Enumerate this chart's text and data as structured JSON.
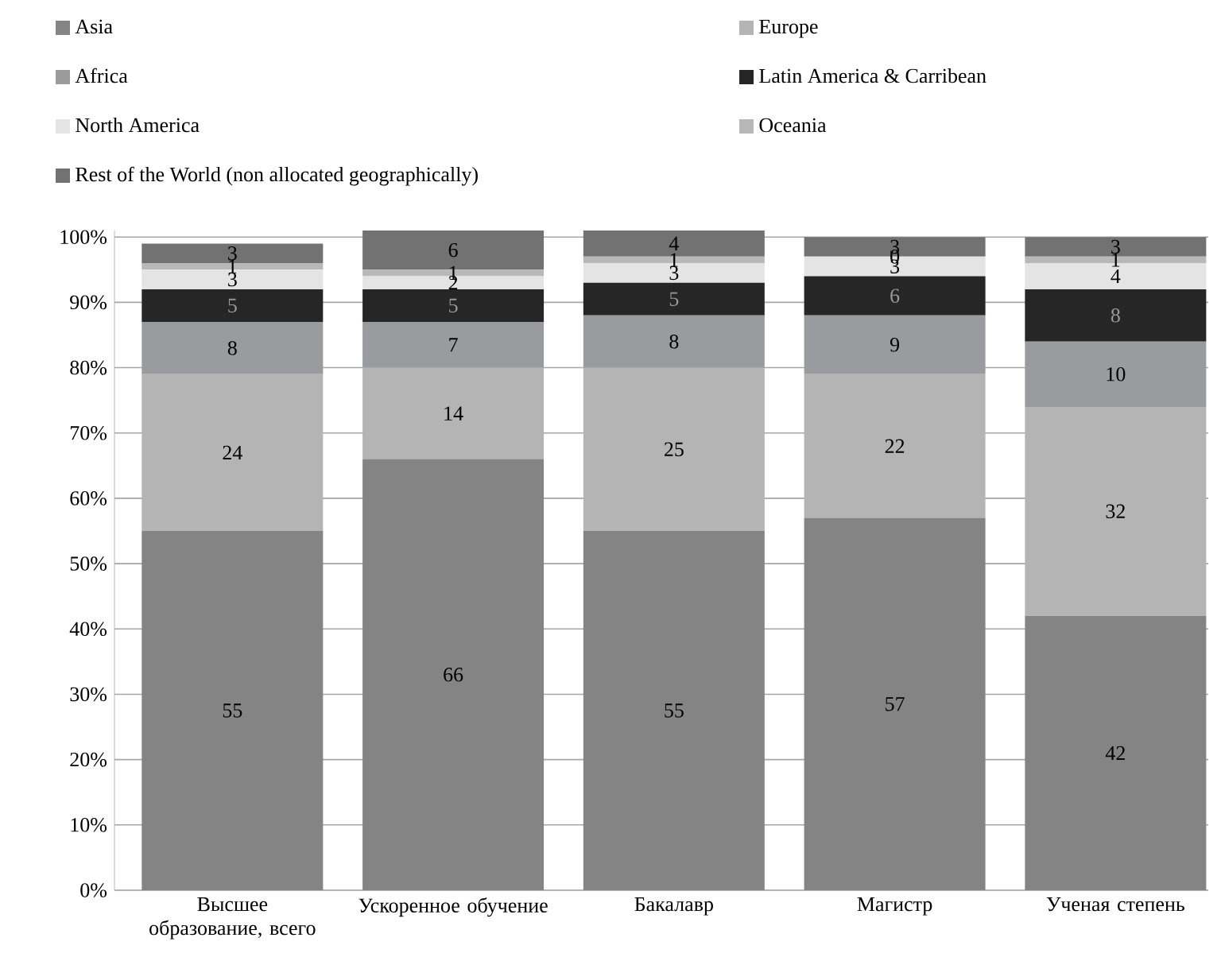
{
  "chart_data": {
    "type": "bar",
    "stacked": true,
    "data_labels": true,
    "grid": "y",
    "legend": "top",
    "categories": [
      "Высшее образование, всего",
      "Ускоренное обучение",
      "Бакалавр",
      "Магистр",
      "Ученая степень"
    ],
    "ylim": [
      0,
      101
    ],
    "yticks": [
      {
        "value": 0,
        "label": "0%"
      },
      {
        "value": 10,
        "label": "10%"
      },
      {
        "value": 20,
        "label": "20%"
      },
      {
        "value": 30,
        "label": "30%"
      },
      {
        "value": 40,
        "label": "40%"
      },
      {
        "value": 50,
        "label": "50%"
      },
      {
        "value": 60,
        "label": "60%"
      },
      {
        "value": 70,
        "label": "70%"
      },
      {
        "value": 80,
        "label": "80%"
      },
      {
        "value": 90,
        "label": "90%"
      },
      {
        "value": 100,
        "label": "100%"
      }
    ],
    "series": [
      {
        "name": "Asia",
        "color": "#848484",
        "values": [
          55,
          66,
          55,
          57,
          42
        ]
      },
      {
        "name": "Europe",
        "color": "#b4b4b4",
        "values": [
          24,
          14,
          25,
          22,
          32
        ]
      },
      {
        "name": "Africa",
        "color": "#9a9b9f",
        "values": [
          8,
          7,
          8,
          9,
          10
        ]
      },
      {
        "name": "Latin America & Carribean",
        "color": "#262626",
        "values": [
          5,
          5,
          5,
          6,
          8
        ]
      },
      {
        "name": "North America",
        "color": "#e4e4e4",
        "values": [
          3,
          2,
          3,
          3,
          4
        ]
      },
      {
        "name": "Oceania",
        "color": "#b8b8b8",
        "values": [
          1,
          1,
          1,
          0,
          1
        ]
      },
      {
        "name": "Rest of the World (non allocated geographically)",
        "color": "#727272",
        "values": [
          3,
          6,
          4,
          3,
          3
        ]
      }
    ]
  }
}
